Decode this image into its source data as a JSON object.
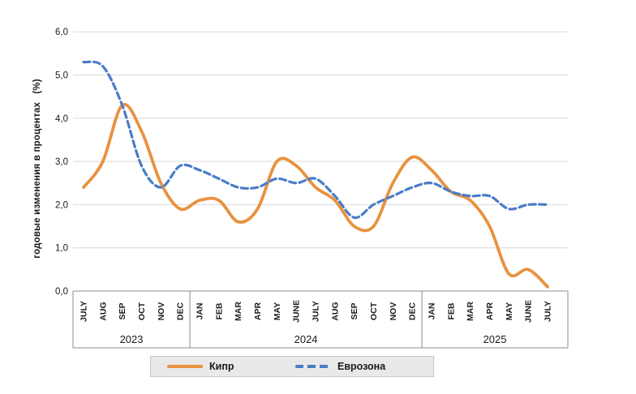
{
  "chart": {
    "y_axis_title": "годовые изменения в процентах   (%)",
    "colors": {
      "cyprus_line": "#e8923f",
      "eurozone_line": "#4a7cc7",
      "gridline": "#d9d9d9",
      "axis_line": "#8c8c8c",
      "text": "#1a1a1a",
      "legend_bg": "#e9e9e9",
      "legend_border": "#c6c6c6"
    }
  },
  "chart_data": {
    "type": "line",
    "title": "",
    "xlabel": "",
    "ylabel": "годовые изменения в процентах (%)",
    "ylim": [
      0,
      6
    ],
    "grid": true,
    "legend_position": "bottom",
    "y_ticks": [
      {
        "label": "6,0",
        "value": 6
      },
      {
        "label": "5,0",
        "value": 5
      },
      {
        "label": "4,0",
        "value": 4
      },
      {
        "label": "3,0",
        "value": 3
      },
      {
        "label": "2,0",
        "value": 2
      },
      {
        "label": "1,0",
        "value": 1
      },
      {
        "label": "0,0",
        "value": 0
      }
    ],
    "x_groups": [
      {
        "year": "2023",
        "months": [
          "JULY",
          "AUG",
          "SEP",
          "OCT",
          "NOV",
          "DEC"
        ]
      },
      {
        "year": "2024",
        "months": [
          "JAN",
          "FEB",
          "MAR",
          "APR",
          "MAY",
          "JUNE",
          "JULY",
          "AUG",
          "SEP",
          "OCT",
          "NOV",
          "DEC"
        ]
      },
      {
        "year": "2025",
        "months": [
          "JAN",
          "FEB",
          "MAR",
          "APR",
          "MAY",
          "JUNE",
          "JULY"
        ]
      }
    ],
    "series": [
      {
        "name": "Кипр",
        "color": "#e8923f",
        "style": "solid",
        "values": [
          2.4,
          3.0,
          4.3,
          3.7,
          2.5,
          1.9,
          2.1,
          2.1,
          1.6,
          1.9,
          3.0,
          2.9,
          2.4,
          2.1,
          1.5,
          1.5,
          2.5,
          3.1,
          2.8,
          2.3,
          2.1,
          1.5,
          0.4,
          0.5,
          0.1
        ]
      },
      {
        "name": "Еврозона",
        "color": "#4a7cc7",
        "style": "dashed",
        "values": [
          5.3,
          5.2,
          4.3,
          2.9,
          2.4,
          2.9,
          2.8,
          2.6,
          2.4,
          2.4,
          2.6,
          2.5,
          2.6,
          2.2,
          1.7,
          2.0,
          2.2,
          2.4,
          2.5,
          2.3,
          2.2,
          2.2,
          1.9,
          2.0,
          2.0
        ]
      }
    ]
  }
}
